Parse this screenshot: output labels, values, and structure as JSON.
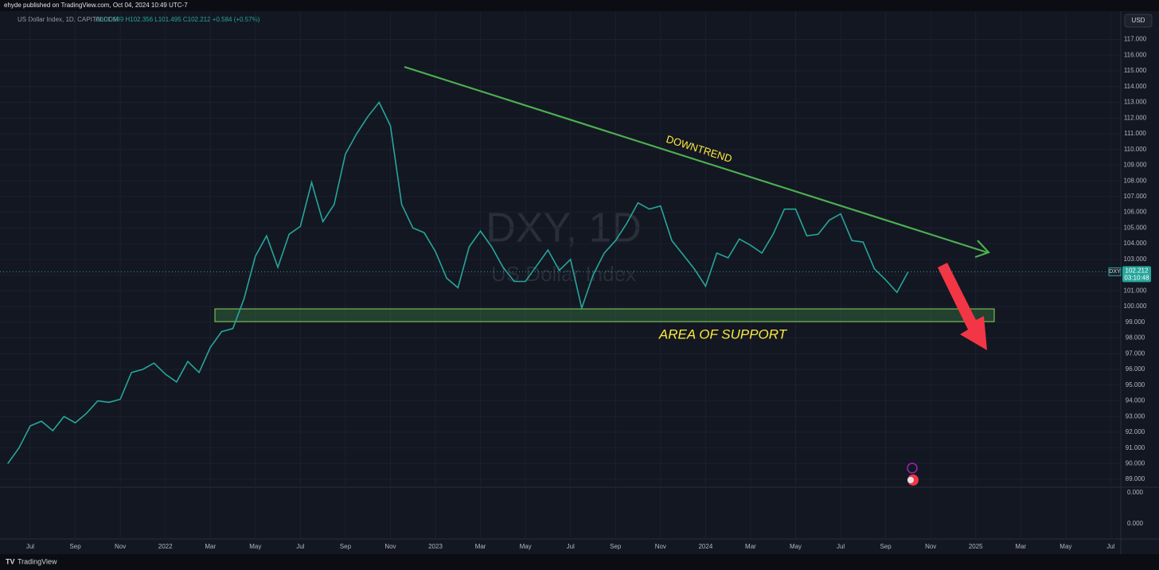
{
  "header": {
    "publisher": "ehyde published on TradingView.com, Oct 04, 2024 10:49 UTC-7",
    "currency_button": "USD",
    "footer_brand": "TradingView"
  },
  "chart_data": {
    "type": "line",
    "symbol_info": "US Dollar Index, 1D, CAPITALCOM",
    "ohlc_text": "O101.599 H102.356 L101.495 C102.212 +0.584 (+0.57%)",
    "watermark_title": "DXY, 1D",
    "watermark_subtitle": "US Dollar Index",
    "annotations": {
      "trend": "DOWNTREND",
      "support": "AREA OF SUPPORT"
    },
    "price_tag": {
      "symbol": "DXY",
      "value": 102.212,
      "countdown": "03:10:48"
    },
    "color": "#26a69a",
    "grid": true,
    "categories": [
      null,
      null,
      "Jul",
      null,
      null,
      null,
      "Sep",
      null,
      null,
      null,
      "Nov",
      null,
      null,
      null,
      "2022",
      null,
      null,
      null,
      "Mar",
      null,
      null,
      null,
      "May",
      null,
      null,
      null,
      "Jul",
      null,
      null,
      null,
      "Sep",
      null,
      null,
      null,
      "Nov",
      null,
      null,
      null,
      "2023",
      null,
      null,
      null,
      "Mar",
      null,
      null,
      null,
      "May",
      null,
      null,
      null,
      "Jul",
      null,
      null,
      null,
      "Sep",
      null,
      null,
      null,
      "Nov",
      null,
      null,
      null,
      "2024",
      null,
      null,
      null,
      "Mar",
      null,
      null,
      null,
      "May",
      null,
      null,
      null,
      "Jul",
      null,
      null,
      null,
      "Sep",
      null,
      null,
      null,
      "Nov",
      null,
      null,
      null,
      "2025",
      null,
      null,
      null,
      "Mar",
      null,
      null,
      null,
      "May",
      null,
      null,
      null,
      "Jul",
      null
    ],
    "values": [
      90.0,
      91.0,
      92.4,
      92.7,
      92.1,
      93.0,
      92.6,
      93.2,
      94.0,
      93.9,
      94.1,
      95.8,
      96.0,
      96.4,
      95.7,
      95.2,
      96.5,
      95.8,
      97.4,
      98.4,
      98.6,
      100.5,
      103.2,
      104.5,
      102.5,
      104.6,
      105.1,
      107.9,
      105.4,
      106.5,
      109.7,
      111.0,
      112.1,
      113.0,
      111.5,
      106.5,
      105.0,
      104.7,
      103.5,
      101.8,
      101.2,
      103.8,
      104.8,
      103.8,
      102.5,
      101.6,
      101.6,
      102.6,
      103.6,
      102.3,
      103.0,
      99.9,
      102.0,
      103.4,
      104.2,
      105.3,
      106.6,
      106.2,
      106.4,
      104.2,
      103.3,
      102.4,
      101.3,
      103.4,
      103.1,
      104.3,
      103.9,
      103.4,
      104.6,
      106.2,
      106.2,
      104.5,
      104.6,
      105.5,
      105.9,
      104.2,
      104.1,
      102.4,
      101.7,
      100.9,
      102.212,
      null,
      null,
      null,
      null,
      null,
      null,
      null,
      null,
      null,
      null,
      null,
      null,
      null,
      null,
      null,
      null,
      null,
      null,
      null
    ],
    "ylim": [
      88.5,
      118.7
    ],
    "yticks": [
      {
        "value": 89,
        "label": "89.000"
      },
      {
        "value": 90,
        "label": "90.000"
      },
      {
        "value": 91,
        "label": "91.000"
      },
      {
        "value": 92,
        "label": "92.000"
      },
      {
        "value": 93,
        "label": "93.000"
      },
      {
        "value": 94,
        "label": "94.000"
      },
      {
        "value": 95,
        "label": "95.000"
      },
      {
        "value": 96,
        "label": "96.000"
      },
      {
        "value": 97,
        "label": "97.000"
      },
      {
        "value": 98,
        "label": "98.000"
      },
      {
        "value": 99,
        "label": "99.000"
      },
      {
        "value": 100,
        "label": "100.000"
      },
      {
        "value": 101,
        "label": "101.000"
      },
      {
        "value": 102,
        "label": "102.000"
      },
      {
        "value": 103,
        "label": "103.000"
      },
      {
        "value": 104,
        "label": "104.000"
      },
      {
        "value": 105,
        "label": "105.000"
      },
      {
        "value": 106,
        "label": "106.000"
      },
      {
        "value": 107,
        "label": "107.000"
      },
      {
        "value": 108,
        "label": "108.000"
      },
      {
        "value": 109,
        "label": "109.000"
      },
      {
        "value": 110,
        "label": "110.000"
      },
      {
        "value": 111,
        "label": "111.000"
      },
      {
        "value": 112,
        "label": "112.000"
      },
      {
        "value": 113,
        "label": "113.000"
      },
      {
        "value": 114,
        "label": "114.000"
      },
      {
        "value": 115,
        "label": "115.000"
      },
      {
        "value": 116,
        "label": "116.000"
      },
      {
        "value": 117,
        "label": "117.000"
      }
    ],
    "lower_pane_labels": [
      "0.000",
      "0.000"
    ]
  }
}
